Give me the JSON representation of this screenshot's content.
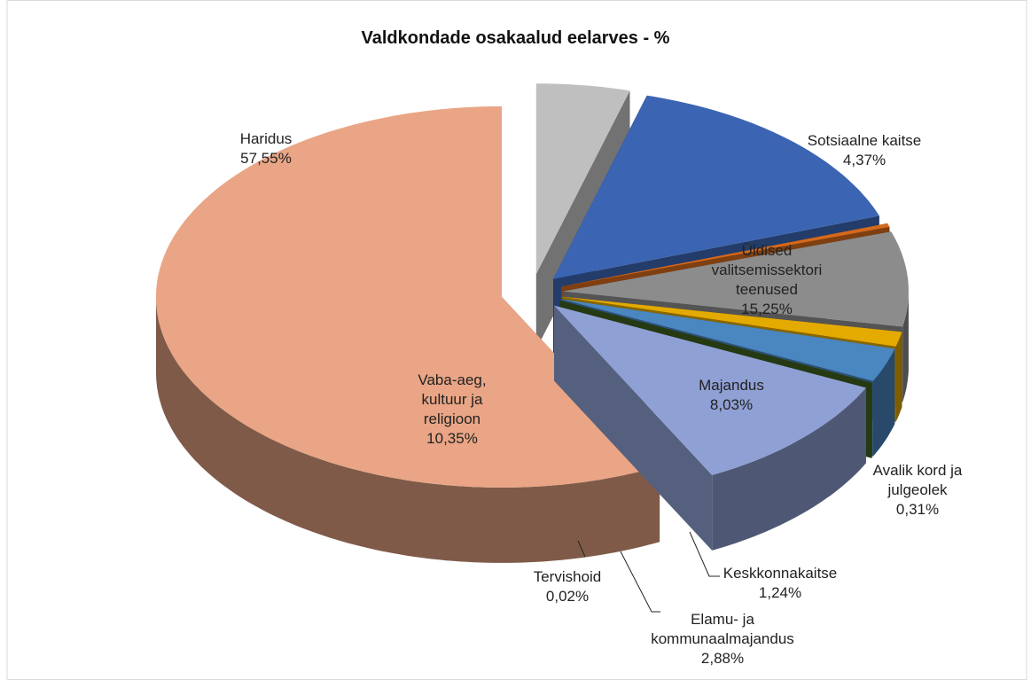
{
  "chart_data": {
    "type": "pie3d",
    "title": "Valdkondade osakaalud eelarves - %",
    "categories": [
      "Sotsiaalne kaitse",
      "Üldised valitsemissektori teenused",
      "Avalik kord ja julgeolek",
      "Majandus",
      "Keskkonnakaitse",
      "Elamu- ja kommunaalmajandus",
      "Tervishoid",
      "Vaba-aeg, kultuur ja religioon",
      "Haridus"
    ],
    "values": [
      4.37,
      15.25,
      0.31,
      8.03,
      1.24,
      2.88,
      0.02,
      10.35,
      57.55
    ],
    "value_labels": [
      "4,37%",
      "15,25%",
      "0,31%",
      "8,03%",
      "1,24%",
      "2,88%",
      "0,02%",
      "10,35%",
      "57,55%"
    ],
    "colors": [
      "#bfbfbf",
      "#3b64b2",
      "#d4691d",
      "#8c8c8c",
      "#e3aa00",
      "#4a86c0",
      "#3f5f1e",
      "#8fa0d4",
      "#e9a585"
    ]
  }
}
